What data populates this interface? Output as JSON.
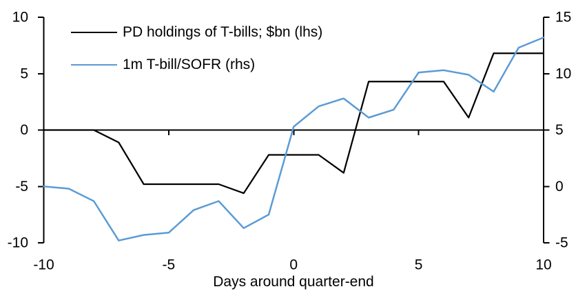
{
  "chart_data": {
    "type": "line",
    "title": "",
    "xlabel": "Days around quarter-end",
    "x": [
      -10,
      -9,
      -8,
      -7,
      -6,
      -5,
      -4,
      -3,
      -2,
      -1,
      0,
      1,
      2,
      3,
      4,
      5,
      6,
      7,
      8,
      9,
      10
    ],
    "x_ticks": [
      -10,
      -5,
      0,
      5,
      10
    ],
    "left_axis": {
      "ylim": [
        -10,
        10
      ],
      "ticks": [
        10,
        5,
        0,
        -5,
        -10
      ]
    },
    "right_axis": {
      "ylim": [
        -5,
        15
      ],
      "ticks": [
        15,
        10,
        5,
        0,
        -5
      ]
    },
    "grid": false,
    "legend_position": "top-left",
    "series": [
      {
        "name": "PD holdings of T-bills; $bn (lhs)",
        "axis": "left",
        "color": "#000000",
        "values": [
          0,
          0,
          0,
          -1.1,
          -4.8,
          -4.8,
          -4.8,
          -4.8,
          -5.6,
          -2.2,
          -2.2,
          -2.2,
          -3.8,
          4.3,
          4.3,
          4.3,
          4.3,
          1.1,
          6.8,
          6.8,
          6.8
        ]
      },
      {
        "name": "1m T-bill/SOFR (rhs)",
        "axis": "right",
        "color": "#5B9BD5",
        "values": [
          0.0,
          -0.2,
          -1.3,
          -4.8,
          -4.3,
          -4.1,
          -2.1,
          -1.3,
          -3.7,
          -2.5,
          5.3,
          7.1,
          7.8,
          6.1,
          6.8,
          10.1,
          10.3,
          9.9,
          8.4,
          12.3,
          13.2
        ]
      }
    ],
    "axis_color": "#000000"
  }
}
